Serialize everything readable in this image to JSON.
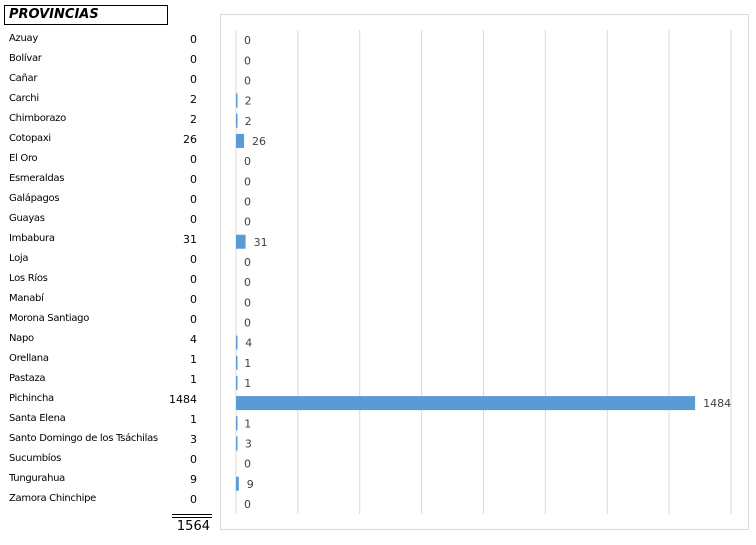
{
  "table": {
    "header": "PROVINCIAS",
    "total": "1564"
  },
  "chart_data": {
    "type": "bar",
    "orientation": "horizontal",
    "categories": [
      "Azuay",
      "Bolívar",
      "Cañar",
      "Carchi",
      "Chimborazo",
      "Cotopaxi",
      "El Oro",
      "Esmeraldas",
      "Galápagos",
      "Guayas",
      "Imbabura",
      "Loja",
      "Los Ríos",
      "Manabí",
      "Morona Santiago",
      "Napo",
      "Orellana",
      "Pastaza",
      "Pichincha",
      "Santa Elena",
      "Santo Domingo de los Tsáchilas",
      "Sucumbíos",
      "Tungurahua",
      "Zamora Chinchipe"
    ],
    "values": [
      0,
      0,
      0,
      2,
      2,
      26,
      0,
      0,
      0,
      0,
      31,
      0,
      0,
      0,
      0,
      4,
      1,
      1,
      1484,
      1,
      3,
      0,
      9,
      0
    ],
    "xlim": [
      0,
      1600
    ],
    "grid": true,
    "data_labels": true,
    "bar_color": "#5b9bd5",
    "grid_color": "#d9d9d9"
  }
}
